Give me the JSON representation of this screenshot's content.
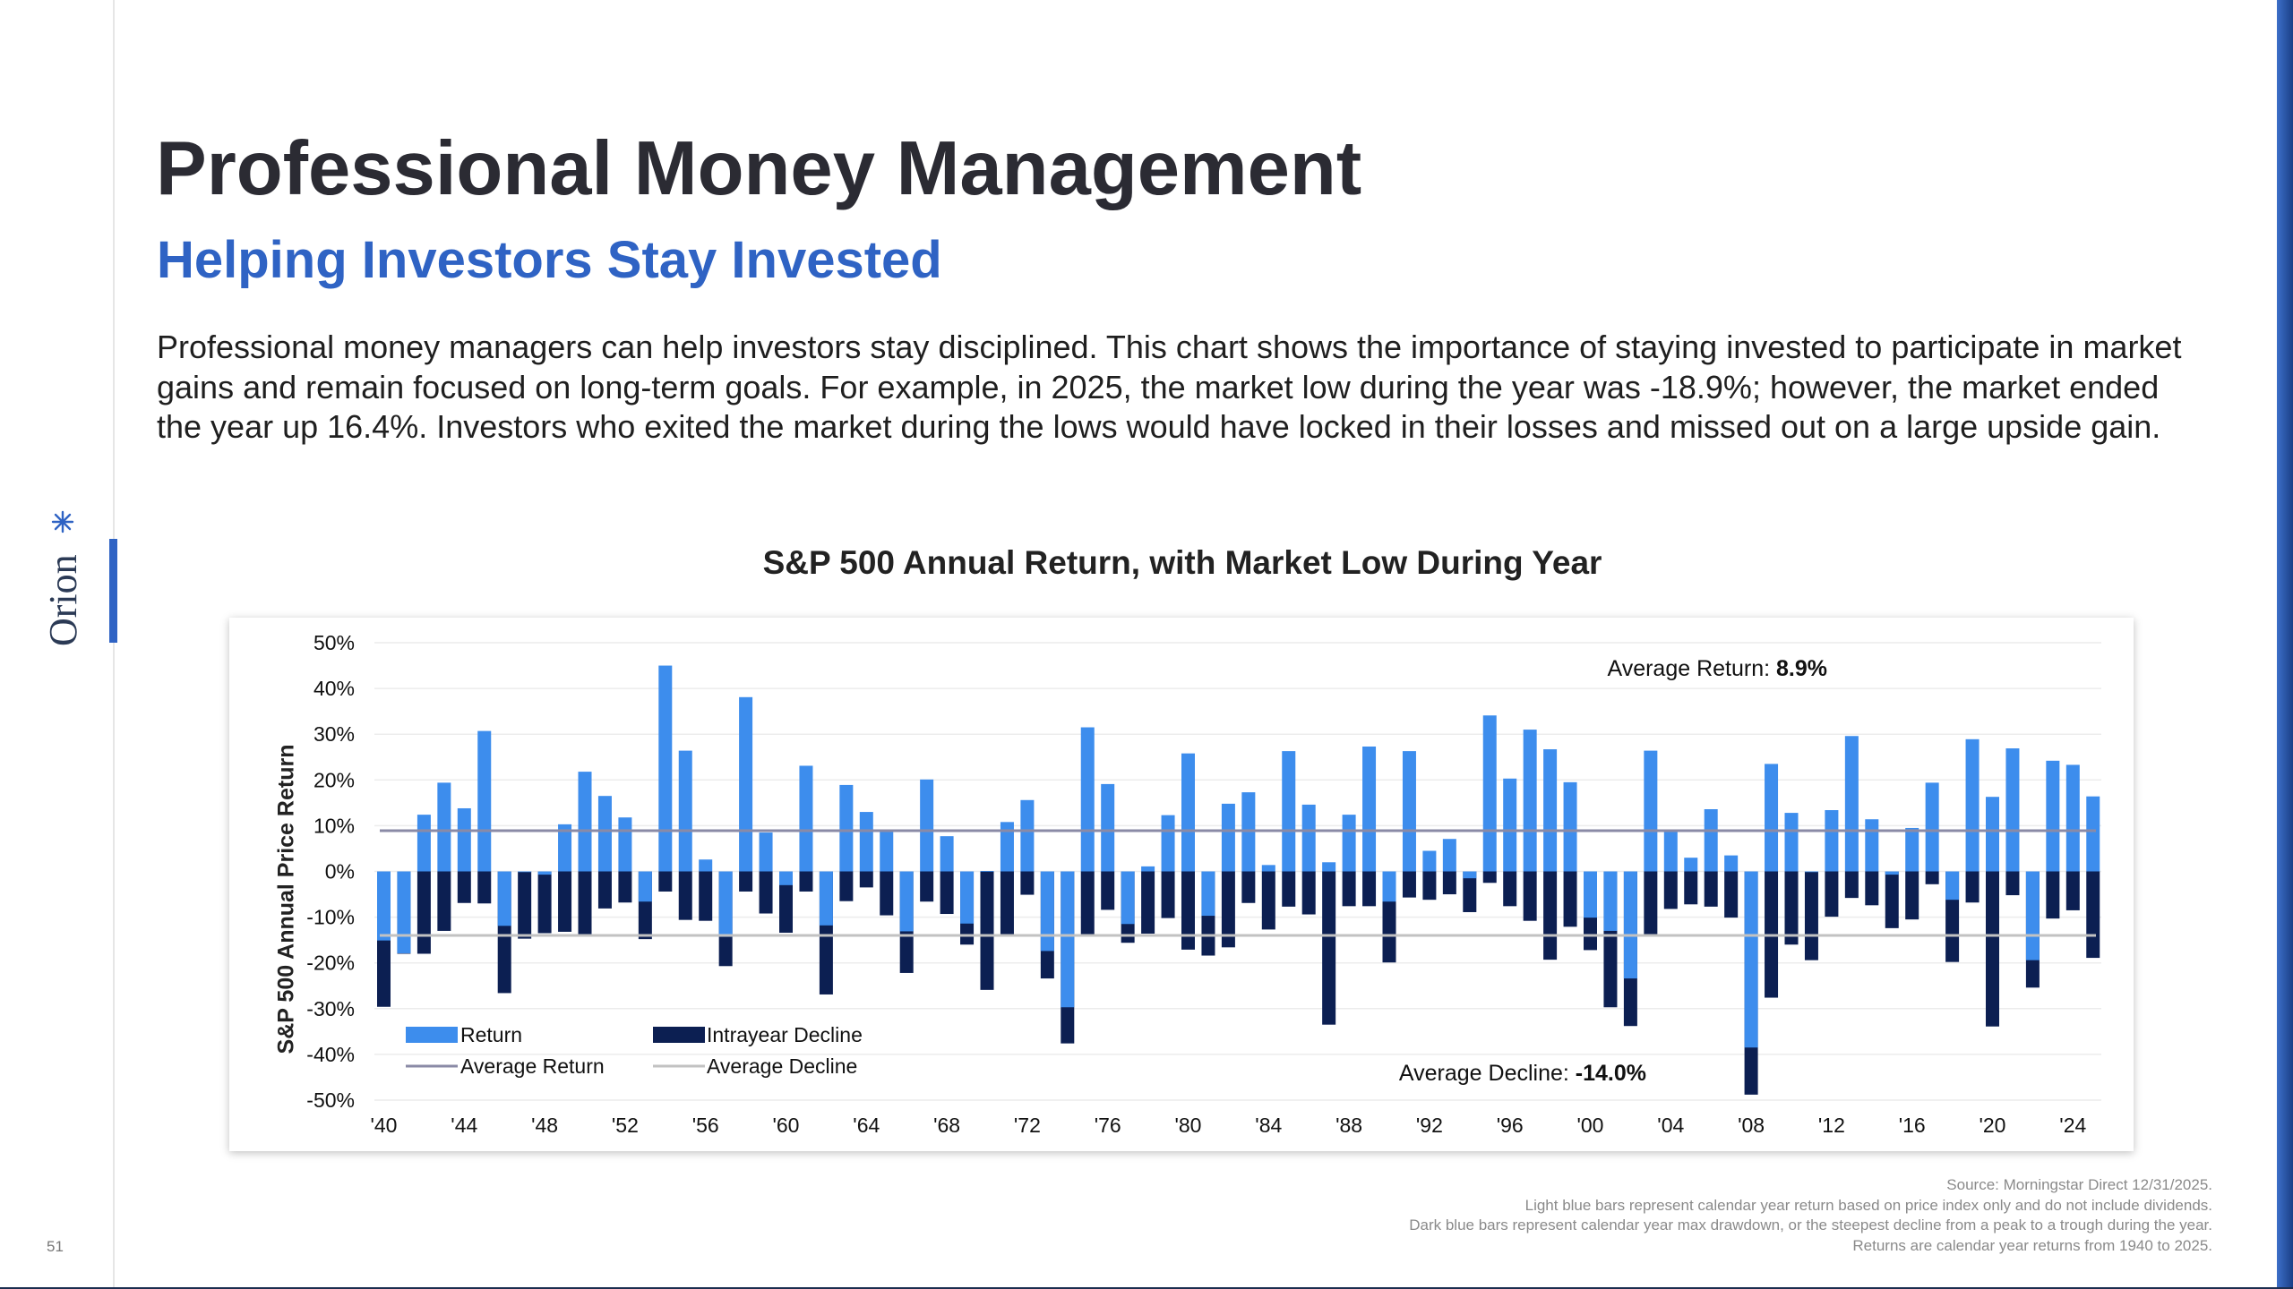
{
  "page": {
    "title": "Professional Money Management",
    "subtitle": "Helping Investors Stay Invested",
    "body": "Professional money managers can help investors stay disciplined. This chart shows the importance of staying invested to participate in market gains and remain focused on long-term goals. For example, in 2025, the market low during the year was -18.9%; however, the market ended the year up 16.4%. Investors who exited the market during the lows would have locked in their losses and missed out on a large upside gain.",
    "page_number": "51",
    "logo_text": "Orion",
    "colors": {
      "accent": "#2f63c4",
      "return_bar": "#3d8ded",
      "decline_bar": "#0c1f52",
      "avg_return_line": "#8a8aa6",
      "avg_decline_line": "#c2c2c2"
    }
  },
  "footnotes": [
    "Source: Morningstar Direct 12/31/2025.",
    "Light blue bars represent calendar year return based on price index only and do not include dividends.",
    "Dark blue bars represent calendar year max drawdown, or the steepest decline from a peak to a trough during the year.",
    "Returns are calendar year returns from 1940 to 2025."
  ],
  "chart_data": {
    "type": "bar",
    "title": "S&P 500 Annual Return, with Market Low During Year",
    "ylabel": "S&P 500 Annual Price Return",
    "xlabel": "",
    "ylim": [
      -50,
      50
    ],
    "y_ticks": [
      "50%",
      "40%",
      "30%",
      "20%",
      "10%",
      "0%",
      "-10%",
      "-20%",
      "-30%",
      "-40%",
      "-50%"
    ],
    "x_tick_labels": [
      "'40",
      "'44",
      "'48",
      "'52",
      "'56",
      "'60",
      "'64",
      "'68",
      "'72",
      "'76",
      "'80",
      "'84",
      "'88",
      "'92",
      "'96",
      "'00",
      "'04",
      "'08",
      "'12",
      "'16",
      "'20",
      "'24"
    ],
    "grid": true,
    "legend_position": "bottom-left",
    "categories": [
      1940,
      1941,
      1942,
      1943,
      1944,
      1945,
      1946,
      1947,
      1948,
      1949,
      1950,
      1951,
      1952,
      1953,
      1954,
      1955,
      1956,
      1957,
      1958,
      1959,
      1960,
      1961,
      1962,
      1963,
      1964,
      1965,
      1966,
      1967,
      1968,
      1969,
      1970,
      1971,
      1972,
      1973,
      1974,
      1975,
      1976,
      1977,
      1978,
      1979,
      1980,
      1981,
      1982,
      1983,
      1984,
      1985,
      1986,
      1987,
      1988,
      1989,
      1990,
      1991,
      1992,
      1993,
      1994,
      1995,
      1996,
      1997,
      1998,
      1999,
      2000,
      2001,
      2002,
      2003,
      2004,
      2005,
      2006,
      2007,
      2008,
      2009,
      2010,
      2011,
      2012,
      2013,
      2014,
      2015,
      2016,
      2017,
      2018,
      2019,
      2020,
      2021,
      2022,
      2023,
      2024,
      2025
    ],
    "series": [
      {
        "name": "Return",
        "values": [
          -15.1,
          -17.9,
          12.4,
          19.4,
          13.8,
          30.7,
          -11.9,
          0.0,
          -0.7,
          10.3,
          21.8,
          16.5,
          11.8,
          -6.6,
          45.0,
          26.4,
          2.6,
          -14.3,
          38.1,
          8.5,
          -3.0,
          23.1,
          -11.8,
          18.9,
          13.0,
          9.1,
          -13.1,
          20.1,
          7.7,
          -11.4,
          0.1,
          10.8,
          15.6,
          -17.4,
          -29.7,
          31.5,
          19.1,
          -11.5,
          1.1,
          12.3,
          25.8,
          -9.7,
          14.8,
          17.3,
          1.4,
          26.3,
          14.6,
          2.0,
          12.4,
          27.3,
          -6.6,
          26.3,
          4.5,
          7.1,
          -1.5,
          34.1,
          20.3,
          31.0,
          26.7,
          19.5,
          -10.1,
          -13.0,
          -23.4,
          26.4,
          9.0,
          3.0,
          13.6,
          3.5,
          -38.5,
          23.5,
          12.8,
          0.0,
          13.4,
          29.6,
          11.4,
          -0.7,
          9.5,
          19.4,
          -6.2,
          28.9,
          16.3,
          26.9,
          -19.4,
          24.2,
          23.3,
          16.4
        ]
      },
      {
        "name": "Intrayear Decline",
        "values": [
          -29.6,
          -18.0,
          -18.0,
          -13.0,
          -6.9,
          -7.0,
          -26.6,
          -14.7,
          -13.5,
          -13.2,
          -14.0,
          -8.1,
          -6.8,
          -14.8,
          -4.4,
          -10.6,
          -10.8,
          -20.7,
          -4.4,
          -9.2,
          -13.4,
          -4.4,
          -26.9,
          -6.5,
          -3.5,
          -9.6,
          -22.2,
          -6.6,
          -9.3,
          -16.0,
          -25.9,
          -13.9,
          -5.1,
          -23.4,
          -37.6,
          -14.1,
          -8.4,
          -15.6,
          -13.6,
          -10.2,
          -17.1,
          -18.4,
          -16.6,
          -6.9,
          -12.7,
          -7.7,
          -9.4,
          -33.5,
          -7.6,
          -7.6,
          -19.9,
          -5.7,
          -6.2,
          -5.0,
          -8.9,
          -2.5,
          -7.6,
          -10.8,
          -19.3,
          -12.1,
          -17.2,
          -29.7,
          -33.8,
          -14.1,
          -8.2,
          -7.2,
          -7.7,
          -10.1,
          -48.8,
          -27.6,
          -16.0,
          -19.4,
          -9.9,
          -5.8,
          -7.4,
          -12.4,
          -10.5,
          -2.8,
          -19.8,
          -6.8,
          -33.9,
          -5.2,
          -25.4,
          -10.3,
          -8.5,
          -18.9
        ]
      }
    ],
    "average_return": {
      "label": "Average Return:",
      "value": "8.9%",
      "y": 8.9
    },
    "average_decline": {
      "label": "Average Decline:",
      "value": "-14.0%",
      "y": -14.0
    },
    "legend": {
      "return": "Return",
      "decline": "Intrayear Decline",
      "avg_return": "Average Return",
      "avg_decline": "Average Decline"
    }
  }
}
